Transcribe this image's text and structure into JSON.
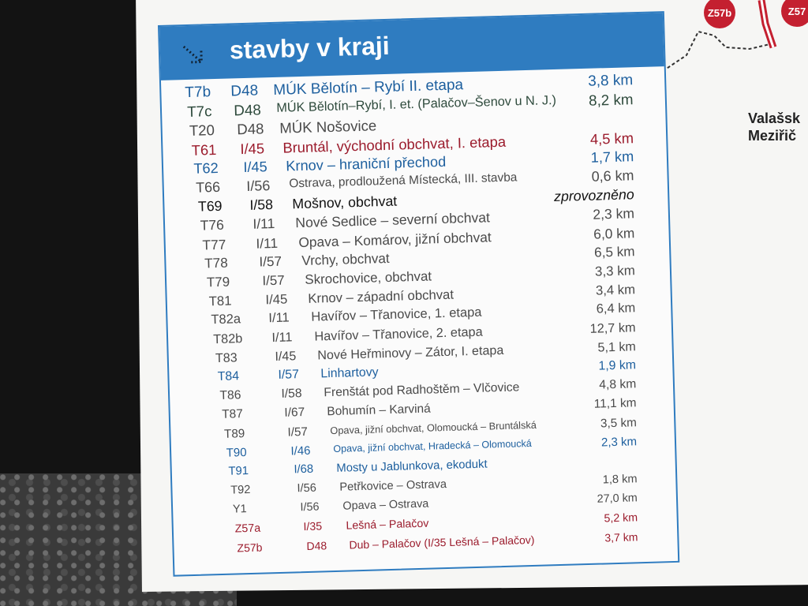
{
  "sign": {
    "title": "stavby v kraji",
    "rows": [
      {
        "code": "T7b",
        "road": "D48",
        "name": "MÚK Bělotín – Rybí II. etapa",
        "length": "3,8 km",
        "color": "#1d5f9e"
      },
      {
        "code": "T7c",
        "road": "D48",
        "name": "MÚK Bělotín–Rybí, I. et. (Palačov–Šenov u N. J.)",
        "length": "8,2 km",
        "color": "#2e4a3c"
      },
      {
        "code": "T20",
        "road": "D48",
        "name": "MÚK Nošovice",
        "color": "#4a4a4a"
      },
      {
        "code": "T61",
        "road": "I/45",
        "name": "Bruntál, východní obchvat, I. etapa",
        "length": "4,5 km",
        "color": "#9b1b2c"
      },
      {
        "code": "T62",
        "road": "I/45",
        "name": "Krnov – hraniční přechod",
        "length": "1,7 km",
        "color": "#1d5f9e"
      },
      {
        "code": "T66",
        "road": "I/56",
        "name": "Ostrava, prodloužená Místecká, III. stavba",
        "length": "0,6 km",
        "color": "#4a4a4a"
      },
      {
        "code": "T69",
        "road": "I/58",
        "name": "Mošnov, obchvat",
        "length": "zprovozněno",
        "color": "#111111"
      },
      {
        "code": "T76",
        "road": "I/11",
        "name": "Nové Sedlice – severní obchvat",
        "length": "2,3 km",
        "color": "#4a4a4a"
      },
      {
        "code": "T77",
        "road": "I/11",
        "name": "Opava – Komárov, jižní obchvat",
        "length": "6,0 km",
        "color": "#4a4a4a"
      },
      {
        "code": "T78",
        "road": "I/57",
        "name": "Vrchy, obchvat",
        "length": "6,5 km",
        "color": "#4a4a4a"
      },
      {
        "code": "T79",
        "road": "I/57",
        "name": "Skrochovice, obchvat",
        "length": "3,3 km",
        "color": "#4a4a4a"
      },
      {
        "code": "T81",
        "road": "I/45",
        "name": "Krnov – západní obchvat",
        "length": "3,4 km",
        "color": "#4a4a4a"
      },
      {
        "code": "T82a",
        "road": "I/11",
        "name": "Havířov – Třanovice, 1. etapa",
        "length": "6,4 km",
        "color": "#4a4a4a"
      },
      {
        "code": "T82b",
        "road": "I/11",
        "name": "Havířov – Třanovice, 2. etapa",
        "length": "12,7 km",
        "color": "#4a4a4a"
      },
      {
        "code": "T83",
        "road": "I/45",
        "name": "Nové Heřminovy – Zátor, I. etapa",
        "length": "5,1 km",
        "color": "#4a4a4a"
      },
      {
        "code": "T84",
        "road": "I/57",
        "name": "Linhartovy",
        "length": "1,9 km",
        "color": "#1d5f9e"
      },
      {
        "code": "T86",
        "road": "I/58",
        "name": "Frenštát pod Radhoštěm – Vlčovice",
        "length": "4,8 km",
        "color": "#4a4a4a"
      },
      {
        "code": "T87",
        "road": "I/67",
        "name": "Bohumín – Karviná",
        "length": "11,1 km",
        "color": "#4a4a4a"
      },
      {
        "code": "T89",
        "road": "I/57",
        "name": "Opava, jižní obchvat, Olomoucká – Bruntálská",
        "length": "3,5 km",
        "color": "#4a4a4a"
      },
      {
        "code": "T90",
        "road": "I/46",
        "name": "Opava, jižní obchvat, Hradecká – Olomoucká",
        "length": "2,3 km",
        "color": "#1d5f9e"
      },
      {
        "code": "T91",
        "road": "I/68",
        "name": "Mosty u Jablunkova, ekodukt",
        "color": "#1d5f9e"
      },
      {
        "code": "T92",
        "road": "I/56",
        "name": "Petřkovice – Ostrava",
        "length": "1,8 km",
        "color": "#4a4a4a"
      },
      {
        "code": "Y1",
        "road": "I/56",
        "name": "Opava – Ostrava",
        "length": "27,0 km",
        "color": "#4a4a4a"
      },
      {
        "code": "Z57a",
        "road": "I/35",
        "name": "Lešná – Palačov",
        "length": "5,2 km",
        "color": "#9b1b2c"
      },
      {
        "code": "Z57b",
        "road": "D48",
        "name": "Dub – Palačov (I/35 Lešná – Palačov)",
        "length": "3,7 km",
        "color": "#9b1b2c"
      }
    ]
  },
  "map": {
    "markers": [
      "Z57b",
      "Z57"
    ],
    "city_lines": [
      "Valašsk",
      "Meziřič"
    ]
  }
}
